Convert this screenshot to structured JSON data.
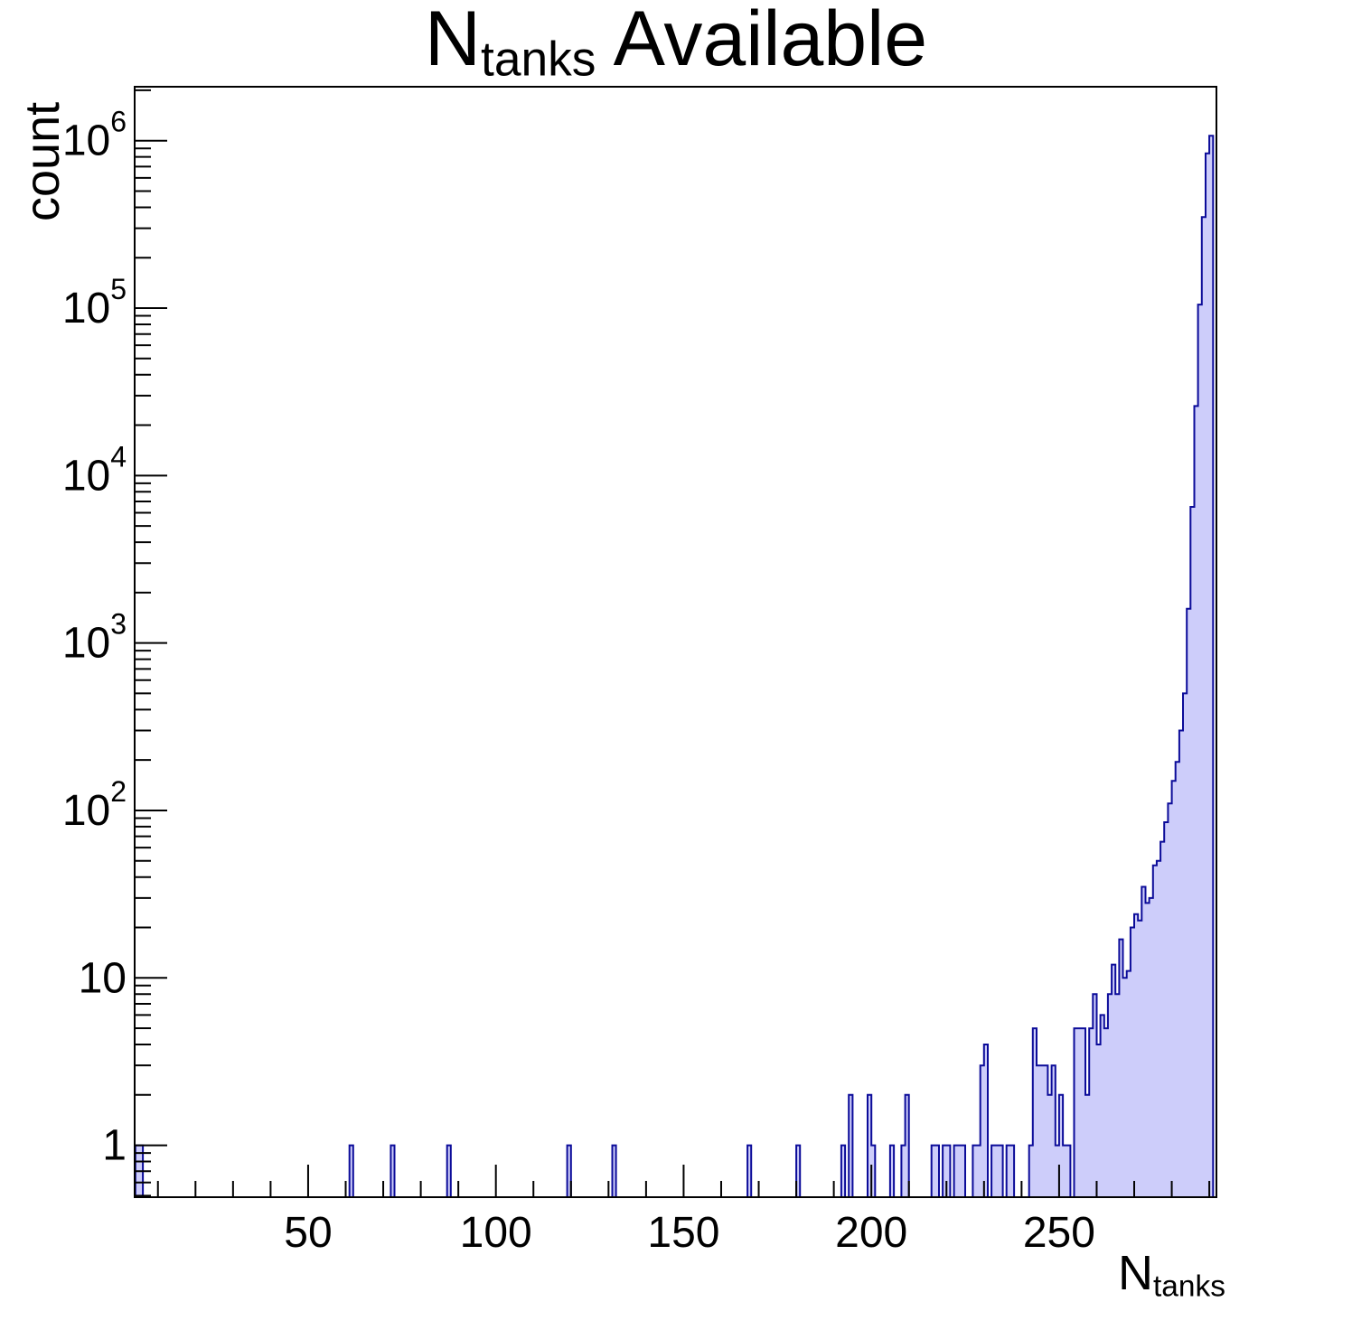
{
  "title": {
    "base": "N",
    "subscript": "tanks",
    "suffix": " Available"
  },
  "axes": {
    "x": {
      "title_base": "N",
      "title_subscript": "tanks"
    },
    "y": {
      "title": "count",
      "tick_labels": [
        "1",
        "10",
        "10^2",
        "10^3",
        "10^4",
        "10^5",
        "10^6"
      ]
    }
  },
  "chart_data": {
    "type": "bar",
    "subtype": "histogram-step-filled",
    "title": "N_{tanks} Available",
    "xlabel": "N_{tanks}",
    "ylabel": "count",
    "x_range": [
      3.8,
      291.9
    ],
    "y_range": [
      0.49,
      2100000
    ],
    "y_scale": "log",
    "bin_width": 1,
    "x_major_ticks": [
      50,
      100,
      150,
      200,
      250
    ],
    "x_minor_tick_step": 10,
    "y_major_tick_exponents": [
      0,
      1,
      2,
      3,
      4,
      5,
      6
    ],
    "grid": false,
    "legend": "none",
    "colors": {
      "fill": "#cdcdfa",
      "edge": "#0b0b99",
      "frame": "#000000",
      "text": "#000000",
      "background": "#ffffff"
    },
    "bins": [
      [
        4,
        1
      ],
      [
        5,
        1
      ],
      [
        61,
        1
      ],
      [
        72,
        1
      ],
      [
        87,
        1
      ],
      [
        119,
        1
      ],
      [
        131,
        1
      ],
      [
        167,
        1
      ],
      [
        180,
        1
      ],
      [
        192,
        1
      ],
      [
        194,
        2
      ],
      [
        199,
        2
      ],
      [
        200,
        1
      ],
      [
        205,
        1
      ],
      [
        208,
        1
      ],
      [
        209,
        2
      ],
      [
        216,
        1
      ],
      [
        217,
        1
      ],
      [
        219,
        1
      ],
      [
        220,
        1
      ],
      [
        222,
        1
      ],
      [
        223,
        1
      ],
      [
        224,
        1
      ],
      [
        227,
        1
      ],
      [
        228,
        1
      ],
      [
        229,
        3
      ],
      [
        230,
        4
      ],
      [
        232,
        1
      ],
      [
        233,
        1
      ],
      [
        234,
        1
      ],
      [
        236,
        1
      ],
      [
        237,
        1
      ],
      [
        242,
        1
      ],
      [
        243,
        5
      ],
      [
        244,
        3
      ],
      [
        245,
        3
      ],
      [
        246,
        3
      ],
      [
        247,
        2
      ],
      [
        248,
        3
      ],
      [
        249,
        1
      ],
      [
        250,
        2
      ],
      [
        251,
        1
      ],
      [
        252,
        1
      ],
      [
        254,
        5
      ],
      [
        255,
        5
      ],
      [
        256,
        5
      ],
      [
        257,
        2
      ],
      [
        258,
        5
      ],
      [
        259,
        8
      ],
      [
        260,
        4
      ],
      [
        261,
        6
      ],
      [
        262,
        5
      ],
      [
        263,
        8
      ],
      [
        264,
        12
      ],
      [
        265,
        8
      ],
      [
        266,
        17
      ],
      [
        267,
        10
      ],
      [
        268,
        11
      ],
      [
        269,
        20
      ],
      [
        270,
        24
      ],
      [
        271,
        22
      ],
      [
        272,
        35
      ],
      [
        273,
        28
      ],
      [
        274,
        30
      ],
      [
        275,
        47
      ],
      [
        276,
        50
      ],
      [
        277,
        65
      ],
      [
        278,
        85
      ],
      [
        279,
        110
      ],
      [
        280,
        150
      ],
      [
        281,
        195
      ],
      [
        282,
        300
      ],
      [
        283,
        500
      ],
      [
        284,
        1600
      ],
      [
        285,
        6500
      ],
      [
        286,
        26000
      ],
      [
        287,
        105000
      ],
      [
        288,
        350000
      ],
      [
        289,
        840000
      ],
      [
        290,
        1070000
      ]
    ]
  }
}
